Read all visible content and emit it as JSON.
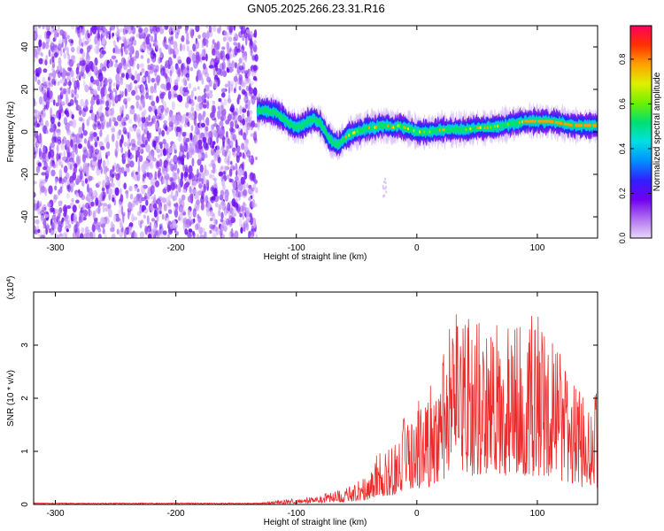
{
  "title": "GN05.2025.266.23.31.R16",
  "chart_data": [
    {
      "type": "heatmap",
      "xlabel": "Height of straight line (km)",
      "ylabel": "Frequency (Hz)",
      "xlim": [
        -318,
        150
      ],
      "ylim": [
        -50,
        50
      ],
      "x_ticks": [
        -300,
        -200,
        -100,
        0,
        100
      ],
      "x_tick_labels": [
        "-300",
        "-200",
        "-100",
        "0",
        "100"
      ],
      "y_ticks": [
        -40,
        -20,
        0,
        20,
        40
      ],
      "y_tick_labels": [
        "-40",
        "-20",
        "0",
        "20",
        "40"
      ],
      "noise_region_x": [
        -318,
        -133
      ],
      "ridge": {
        "x": [
          -132,
          -125,
          -118,
          -112,
          -106,
          -100,
          -95,
          -90,
          -85,
          -80,
          -75,
          -70,
          -65,
          -60,
          -55,
          -50,
          -45,
          -40,
          -35,
          -30,
          -25,
          -20,
          -15,
          -10,
          -5,
          0,
          10,
          20,
          30,
          40,
          50,
          60,
          70,
          80,
          90,
          100,
          110,
          120,
          130,
          140,
          150
        ],
        "y": [
          10,
          10,
          9,
          7,
          4,
          2,
          3,
          5,
          6,
          4,
          -1,
          -5,
          -6,
          -3,
          -1,
          0,
          1,
          2,
          2,
          3,
          3,
          2,
          3,
          2,
          1,
          0,
          0,
          1,
          1,
          1,
          2,
          2,
          3,
          4,
          5,
          5,
          5,
          4,
          3,
          3,
          3
        ]
      },
      "colorbar": {
        "label": "Normalized spectral amplitude",
        "ticks": [
          0.0,
          0.2,
          0.4,
          0.6,
          0.8
        ],
        "tick_labels": [
          "0.0",
          "0.2",
          "0.4",
          "0.6",
          "0.8"
        ],
        "range": [
          0,
          0.95
        ],
        "stops": [
          "#e8d8f8",
          "#b070f0",
          "#7000f0",
          "#3020ff",
          "#0090ff",
          "#00e0e0",
          "#00e070",
          "#70f000",
          "#e0f000",
          "#ffa000",
          "#ff3000",
          "#ff0060"
        ]
      },
      "grid": false
    },
    {
      "type": "line",
      "xlabel": "Height of straight line (km)",
      "ylabel": "SNR (10 * v/v)",
      "y_multiplier": "(x10",
      "y_multiplier_exp": "4",
      "y_multiplier_close": ")",
      "xlim": [
        -318,
        150
      ],
      "ylim": [
        0,
        4
      ],
      "x_ticks": [
        -300,
        -200,
        -100,
        0,
        100
      ],
      "x_tick_labels": [
        "-300",
        "-200",
        "-100",
        "0",
        "100"
      ],
      "y_ticks": [
        0,
        1,
        2,
        3
      ],
      "y_tick_labels": [
        "0",
        "1",
        "2",
        "3"
      ],
      "line_color": "#ee2b2b",
      "envelope": {
        "x": [
          -318,
          -200,
          -130,
          -115,
          -100,
          -90,
          -80,
          -70,
          -60,
          -50,
          -40,
          -35,
          -30,
          -20,
          -10,
          0,
          10,
          20,
          30,
          40,
          50,
          60,
          70,
          80,
          90,
          100,
          110,
          120,
          130,
          140,
          150
        ],
        "y": [
          0.02,
          0.02,
          0.03,
          0.08,
          0.12,
          0.14,
          0.18,
          0.25,
          0.3,
          0.42,
          0.6,
          0.9,
          1.0,
          1.1,
          1.7,
          2.0,
          2.2,
          2.7,
          3.6,
          3.7,
          3.5,
          3.5,
          3.4,
          3.4,
          3.5,
          3.6,
          3.3,
          2.8,
          2.3,
          2.0,
          2.1
        ]
      },
      "grid": false
    }
  ]
}
